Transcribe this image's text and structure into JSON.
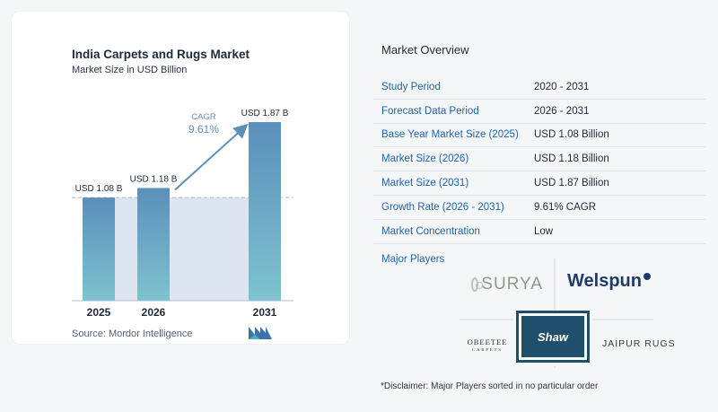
{
  "chart": {
    "title": "India Carpets and Rugs Market",
    "subtitle": "Market Size in USD Billion",
    "source": "Source:  Mordor Intelligence",
    "cagr_label": "CAGR",
    "cagr_value": "9.61%"
  },
  "chart_data": {
    "type": "bar",
    "categories": [
      "2025",
      "2026",
      "2031"
    ],
    "values": [
      1.08,
      1.18,
      1.87
    ],
    "data_labels": [
      "USD 1.08 B",
      "USD 1.18 B",
      "USD 1.87 B"
    ],
    "title": "India Carpets and Rugs Market",
    "subtitle": "Market Size in USD Billion",
    "xlabel": "",
    "ylabel": "",
    "ylim": [
      0,
      2.0
    ],
    "bar_color": "#5b8fbb",
    "bar_color_bottom": "#7ec3cf",
    "baseline_area_color": "#dde6f0",
    "annotation": {
      "label": "CAGR",
      "value": "9.61%"
    }
  },
  "overview": {
    "title": "Market Overview",
    "rows": [
      {
        "label": "Study Period",
        "value": "2020 - 2031"
      },
      {
        "label": "Forecast Data Period",
        "value": "2026 - 2031"
      },
      {
        "label": "Base Year Market Size (2025)",
        "value": "USD 1.08 Billion"
      },
      {
        "label": "Market Size (2026)",
        "value": "USD 1.18 Billion"
      },
      {
        "label": "Market Size (2031)",
        "value": "USD 1.87 Billion"
      },
      {
        "label": "Growth Rate (2026 - 2031)",
        "value": "9.61% CAGR"
      },
      {
        "label": "Market Concentration",
        "value": "Low"
      }
    ]
  },
  "players": {
    "title": "Major Players",
    "logos": {
      "surya": "SURYA",
      "welspun": "Welspun",
      "shaw": "Shaw",
      "obeetee": "OBEETEE",
      "obeetee_sub": "CARPETS",
      "jaipur": "JAIPUR RUGS"
    }
  },
  "disclaimer": "*Disclaimer: Major Players sorted in no particular order",
  "colors": {
    "accent_blue": "#1e63a8",
    "bar_top": "#5b8fbb",
    "bar_bottom": "#7ec3cf",
    "arrow": "#5b8fbb"
  }
}
